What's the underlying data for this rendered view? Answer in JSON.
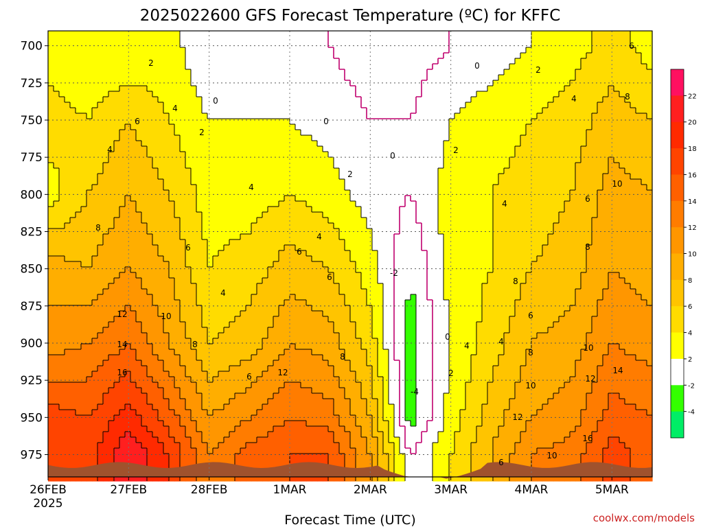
{
  "chart_data": {
    "type": "heatmap",
    "title": "2025022600 GFS Forecast Temperature (ºC) for KFFC",
    "xlabel": "Forecast Time (UTC)",
    "ylabel": "",
    "credit": "coolwx.com/models",
    "y_axis": {
      "scale": "pressure-hPa-inverted",
      "ylim": [
        990,
        690
      ],
      "ticks": [
        "700",
        "725",
        "750",
        "775",
        "800",
        "825",
        "850",
        "875",
        "900",
        "925",
        "950",
        "975"
      ]
    },
    "x_axis": {
      "xlim": [
        "2025-02-26T00",
        "2025-03-05T12"
      ],
      "ticks": [
        {
          "label": "26FEB",
          "sub": "2025"
        },
        {
          "label": "27FEB",
          "sub": ""
        },
        {
          "label": "28FEB",
          "sub": ""
        },
        {
          "label": "1MAR",
          "sub": ""
        },
        {
          "label": "2MAR",
          "sub": ""
        },
        {
          "label": "3MAR",
          "sub": ""
        },
        {
          "label": "4MAR",
          "sub": ""
        },
        {
          "label": "5MAR",
          "sub": ""
        }
      ]
    },
    "grid": true,
    "colorbar": {
      "position": "right",
      "levels": [
        "22",
        "20",
        "18",
        "16",
        "14",
        "12",
        "10",
        "8",
        "6",
        "4",
        "2",
        "-2",
        "-4"
      ],
      "colors": [
        "#ff1060",
        "#ff1f1f",
        "#ff2a00",
        "#ff4400",
        "#ff6000",
        "#ff7c00",
        "#ff9600",
        "#ffae00",
        "#ffc400",
        "#ffdc00",
        "#ffff00",
        "#ffffff",
        "#33ff00",
        "#00ee66"
      ]
    },
    "contour_labels": [
      "2",
      "4",
      "6",
      "8",
      "10",
      "12",
      "14",
      "16",
      "0",
      "-2",
      "-4"
    ],
    "series": [
      {
        "column": "2025-02-26T00",
        "temps": [
          {
            "p": 700,
            "t": 3
          },
          {
            "p": 750,
            "t": 5
          },
          {
            "p": 800,
            "t": 3
          },
          {
            "p": 850,
            "t": 9
          },
          {
            "p": 900,
            "t": 11
          },
          {
            "p": 950,
            "t": 17
          },
          {
            "p": 975,
            "t": 18
          }
        ]
      },
      {
        "column": "2025-02-26T12",
        "temps": [
          {
            "p": 700,
            "t": 2
          },
          {
            "p": 750,
            "t": 4
          },
          {
            "p": 800,
            "t": 6
          },
          {
            "p": 850,
            "t": 8
          },
          {
            "p": 900,
            "t": 12
          },
          {
            "p": 950,
            "t": 16
          },
          {
            "p": 975,
            "t": 17
          }
        ]
      },
      {
        "column": "2025-02-27T00",
        "temps": [
          {
            "p": 700,
            "t": 2
          },
          {
            "p": 750,
            "t": 6
          },
          {
            "p": 800,
            "t": 8
          },
          {
            "p": 850,
            "t": 10
          },
          {
            "p": 900,
            "t": 14
          },
          {
            "p": 950,
            "t": 19
          },
          {
            "p": 975,
            "t": 22
          }
        ]
      },
      {
        "column": "2025-02-27T12",
        "temps": [
          {
            "p": 700,
            "t": 3
          },
          {
            "p": 750,
            "t": 4
          },
          {
            "p": 800,
            "t": 6
          },
          {
            "p": 850,
            "t": 8
          },
          {
            "p": 900,
            "t": 10
          },
          {
            "p": 950,
            "t": 15
          },
          {
            "p": 975,
            "t": 18
          }
        ]
      },
      {
        "column": "2025-02-28T00",
        "temps": [
          {
            "p": 700,
            "t": 0
          },
          {
            "p": 750,
            "t": 2
          },
          {
            "p": 800,
            "t": 3
          },
          {
            "p": 850,
            "t": 4
          },
          {
            "p": 900,
            "t": 6
          },
          {
            "p": 950,
            "t": 10
          },
          {
            "p": 975,
            "t": 12
          }
        ]
      },
      {
        "column": "2025-02-28T12",
        "temps": [
          {
            "p": 700,
            "t": 0
          },
          {
            "p": 750,
            "t": 2
          },
          {
            "p": 800,
            "t": 3
          },
          {
            "p": 850,
            "t": 5
          },
          {
            "p": 900,
            "t": 7
          },
          {
            "p": 950,
            "t": 12
          },
          {
            "p": 975,
            "t": 15
          }
        ]
      },
      {
        "column": "2025-03-01T00",
        "temps": [
          {
            "p": 700,
            "t": 1
          },
          {
            "p": 750,
            "t": 2
          },
          {
            "p": 800,
            "t": 4
          },
          {
            "p": 850,
            "t": 7
          },
          {
            "p": 900,
            "t": 10
          },
          {
            "p": 950,
            "t": 14
          },
          {
            "p": 975,
            "t": 16
          }
        ]
      },
      {
        "column": "2025-03-01T12",
        "temps": [
          {
            "p": 700,
            "t": 0
          },
          {
            "p": 750,
            "t": 1
          },
          {
            "p": 800,
            "t": 3
          },
          {
            "p": 850,
            "t": 6
          },
          {
            "p": 900,
            "t": 9
          },
          {
            "p": 950,
            "t": 13
          },
          {
            "p": 975,
            "t": 16
          }
        ]
      },
      {
        "column": "2025-03-02T00",
        "temps": [
          {
            "p": 700,
            "t": -1
          },
          {
            "p": 750,
            "t": 0
          },
          {
            "p": 800,
            "t": 1
          },
          {
            "p": 850,
            "t": 3
          },
          {
            "p": 900,
            "t": 5
          },
          {
            "p": 950,
            "t": 8
          },
          {
            "p": 975,
            "t": 10
          }
        ]
      },
      {
        "column": "2025-03-02T12",
        "temps": [
          {
            "p": 700,
            "t": -1
          },
          {
            "p": 750,
            "t": 0
          },
          {
            "p": 800,
            "t": 0
          },
          {
            "p": 850,
            "t": -2
          },
          {
            "p": 900,
            "t": -3
          },
          {
            "p": 950,
            "t": -3
          },
          {
            "p": 975,
            "t": 0
          }
        ]
      },
      {
        "column": "2025-03-03T00",
        "temps": [
          {
            "p": 700,
            "t": 0
          },
          {
            "p": 750,
            "t": 2
          },
          {
            "p": 800,
            "t": 3
          },
          {
            "p": 850,
            "t": 3
          },
          {
            "p": 900,
            "t": 2
          },
          {
            "p": 950,
            "t": 3
          },
          {
            "p": 975,
            "t": 4
          }
        ]
      },
      {
        "column": "2025-03-03T12",
        "temps": [
          {
            "p": 700,
            "t": 1
          },
          {
            "p": 750,
            "t": 3
          },
          {
            "p": 800,
            "t": 4
          },
          {
            "p": 850,
            "t": 4
          },
          {
            "p": 900,
            "t": 5
          },
          {
            "p": 950,
            "t": 7
          },
          {
            "p": 975,
            "t": 8
          }
        ]
      },
      {
        "column": "2025-03-04T00",
        "temps": [
          {
            "p": 700,
            "t": 2
          },
          {
            "p": 750,
            "t": 4
          },
          {
            "p": 800,
            "t": 5
          },
          {
            "p": 850,
            "t": 6
          },
          {
            "p": 900,
            "t": 8
          },
          {
            "p": 950,
            "t": 10
          },
          {
            "p": 975,
            "t": 12
          }
        ]
      },
      {
        "column": "2025-03-04T12",
        "temps": [
          {
            "p": 700,
            "t": 3
          },
          {
            "p": 750,
            "t": 5
          },
          {
            "p": 800,
            "t": 6
          },
          {
            "p": 850,
            "t": 7
          },
          {
            "p": 900,
            "t": 9
          },
          {
            "p": 950,
            "t": 11
          },
          {
            "p": 975,
            "t": 13
          }
        ]
      },
      {
        "column": "2025-03-05T00",
        "temps": [
          {
            "p": 700,
            "t": 5
          },
          {
            "p": 750,
            "t": 7
          },
          {
            "p": 800,
            "t": 9
          },
          {
            "p": 850,
            "t": 10
          },
          {
            "p": 900,
            "t": 12
          },
          {
            "p": 950,
            "t": 15
          },
          {
            "p": 975,
            "t": 17
          }
        ]
      },
      {
        "column": "2025-03-05T12",
        "temps": [
          {
            "p": 700,
            "t": 3
          },
          {
            "p": 750,
            "t": 6
          },
          {
            "p": 800,
            "t": 8
          },
          {
            "p": 850,
            "t": 9
          },
          {
            "p": 900,
            "t": 11
          },
          {
            "p": 950,
            "t": 14
          },
          {
            "p": 975,
            "t": 15
          }
        ]
      }
    ]
  }
}
